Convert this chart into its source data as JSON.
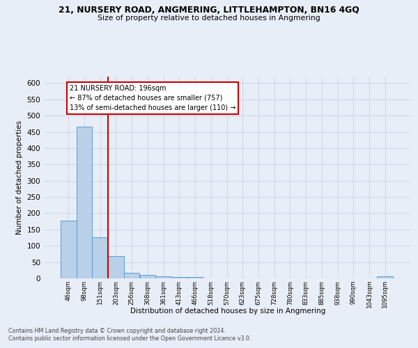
{
  "title_line1": "21, NURSERY ROAD, ANGMERING, LITTLEHAMPTON, BN16 4GQ",
  "title_line2": "Size of property relative to detached houses in Angmering",
  "xlabel": "Distribution of detached houses by size in Angmering",
  "ylabel": "Number of detached properties",
  "footnote1": "Contains HM Land Registry data © Crown copyright and database right 2024.",
  "footnote2": "Contains public sector information licensed under the Open Government Licence v3.0.",
  "categories": [
    "46sqm",
    "98sqm",
    "151sqm",
    "203sqm",
    "256sqm",
    "308sqm",
    "361sqm",
    "413sqm",
    "466sqm",
    "518sqm",
    "570sqm",
    "623sqm",
    "675sqm",
    "728sqm",
    "780sqm",
    "833sqm",
    "885sqm",
    "938sqm",
    "990sqm",
    "1043sqm",
    "1095sqm"
  ],
  "bar_values": [
    178,
    467,
    127,
    68,
    18,
    10,
    7,
    5,
    5,
    0,
    0,
    0,
    0,
    0,
    0,
    0,
    0,
    0,
    0,
    0,
    6
  ],
  "bar_color": "#b8d0e8",
  "bar_edge_color": "#5b9bd5",
  "grid_color": "#d0d8e8",
  "background_color": "#e8eef8",
  "vline_color": "#cc0000",
  "annotation_line1": "21 NURSERY ROAD: 196sqm",
  "annotation_line2": "← 87% of detached houses are smaller (757)",
  "annotation_line3": "13% of semi-detached houses are larger (110) →",
  "annotation_bg": "white",
  "annotation_edge_color": "#cc0000",
  "ylim_max": 620,
  "yticks": [
    0,
    50,
    100,
    150,
    200,
    250,
    300,
    350,
    400,
    450,
    500,
    550,
    600
  ],
  "footnote_color": "#444444"
}
